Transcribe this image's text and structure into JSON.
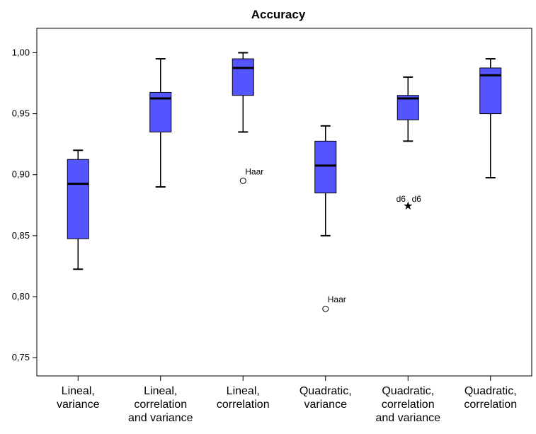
{
  "chart_data": {
    "type": "boxplot",
    "title": "Accuracy",
    "xlabel": "",
    "ylabel": "",
    "ylim": [
      0.735,
      1.02
    ],
    "yticks": [
      0.75,
      0.8,
      0.85,
      0.9,
      0.95,
      1.0
    ],
    "ytick_labels": [
      "0,75",
      "0,80",
      "0,85",
      "0,90",
      "0,95",
      "1,00"
    ],
    "grid": false,
    "box_color": "#5555ff",
    "categories": [
      [
        "Lineal,",
        "variance"
      ],
      [
        "Lineal,",
        "correlation",
        "and variance"
      ],
      [
        "Lineal,",
        "correlation"
      ],
      [
        "Quadratic,",
        "variance"
      ],
      [
        "Quadratic,",
        "correlation",
        "and variance"
      ],
      [
        "Quadratic,",
        "correlation"
      ]
    ],
    "boxes": [
      {
        "whisker_low": 0.8225,
        "q1": 0.8475,
        "median": 0.8925,
        "q3": 0.9125,
        "whisker_high": 0.92,
        "outliers": []
      },
      {
        "whisker_low": 0.89,
        "q1": 0.935,
        "median": 0.9625,
        "q3": 0.9675,
        "whisker_high": 0.995,
        "outliers": []
      },
      {
        "whisker_low": 0.935,
        "q1": 0.965,
        "median": 0.9875,
        "q3": 0.995,
        "whisker_high": 1.0,
        "outliers": [
          {
            "value": 0.895,
            "label": "Haar",
            "marker": "circle"
          }
        ]
      },
      {
        "whisker_low": 0.85,
        "q1": 0.885,
        "median": 0.9075,
        "q3": 0.9275,
        "whisker_high": 0.94,
        "outliers": [
          {
            "value": 0.79,
            "label": "Haar",
            "marker": "circle"
          }
        ]
      },
      {
        "whisker_low": 0.9275,
        "q1": 0.945,
        "median": 0.9625,
        "q3": 0.965,
        "whisker_high": 0.98,
        "outliers": [
          {
            "value": 0.875,
            "label": "d6",
            "label2": "d6",
            "marker": "star"
          }
        ]
      },
      {
        "whisker_low": 0.8975,
        "q1": 0.95,
        "median": 0.9815,
        "q3": 0.9875,
        "whisker_high": 0.995,
        "outliers": []
      }
    ]
  }
}
